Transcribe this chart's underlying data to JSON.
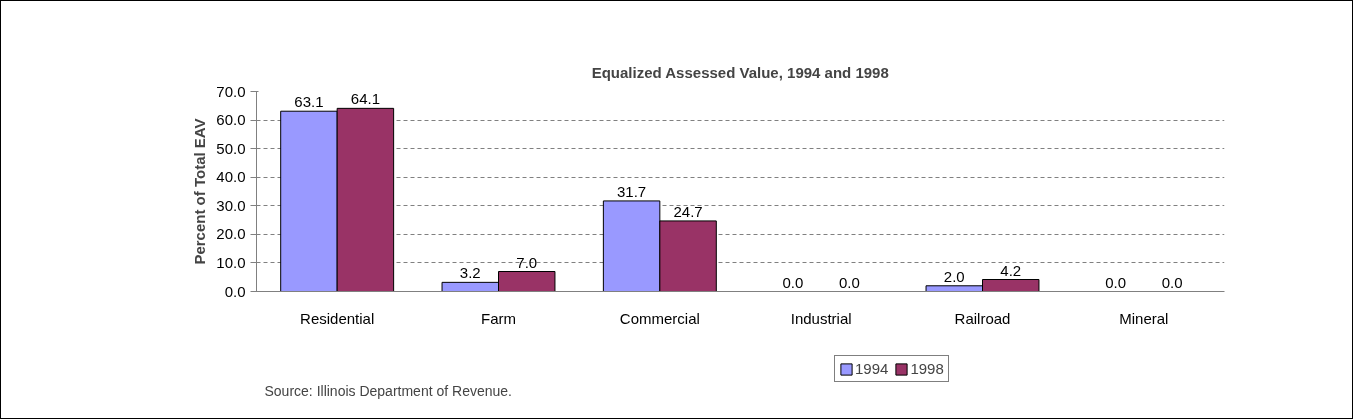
{
  "chart_data": {
    "type": "bar",
    "title": "Equalized Assessed Value, 1994 and 1998",
    "ylabel": "Percent of Total EAV",
    "categories": [
      "Residential",
      "Farm",
      "Commercial",
      "Industrial",
      "Railroad",
      "Mineral"
    ],
    "series": [
      {
        "name": "1994",
        "color": "#9999ff",
        "values": [
          63.1,
          3.2,
          31.7,
          0.0,
          2.0,
          0.0
        ],
        "value_labels": [
          "63.1",
          "3.2",
          "31.7",
          "0.0",
          "2.0",
          "0.0"
        ]
      },
      {
        "name": "1998",
        "color": "#993366",
        "values": [
          64.1,
          7.0,
          24.7,
          0.0,
          4.2,
          0.0
        ],
        "value_labels": [
          "64.1",
          "7.0",
          "24.7",
          "0.0",
          "4.2",
          "0.0"
        ]
      }
    ],
    "ylim": [
      0,
      70
    ],
    "yticks": [
      {
        "value": 0,
        "label": "0.0"
      },
      {
        "value": 10,
        "label": "10.0"
      },
      {
        "value": 20,
        "label": "20.0"
      },
      {
        "value": 30,
        "label": "30.0"
      },
      {
        "value": 40,
        "label": "40.0"
      },
      {
        "value": 50,
        "label": "50.0"
      },
      {
        "value": 60,
        "label": "60.0"
      },
      {
        "value": 70,
        "label": "70.0"
      }
    ],
    "grid": "y",
    "legend": "bottom",
    "annotations": [
      "Source: Illinois Department of Revenue."
    ]
  }
}
